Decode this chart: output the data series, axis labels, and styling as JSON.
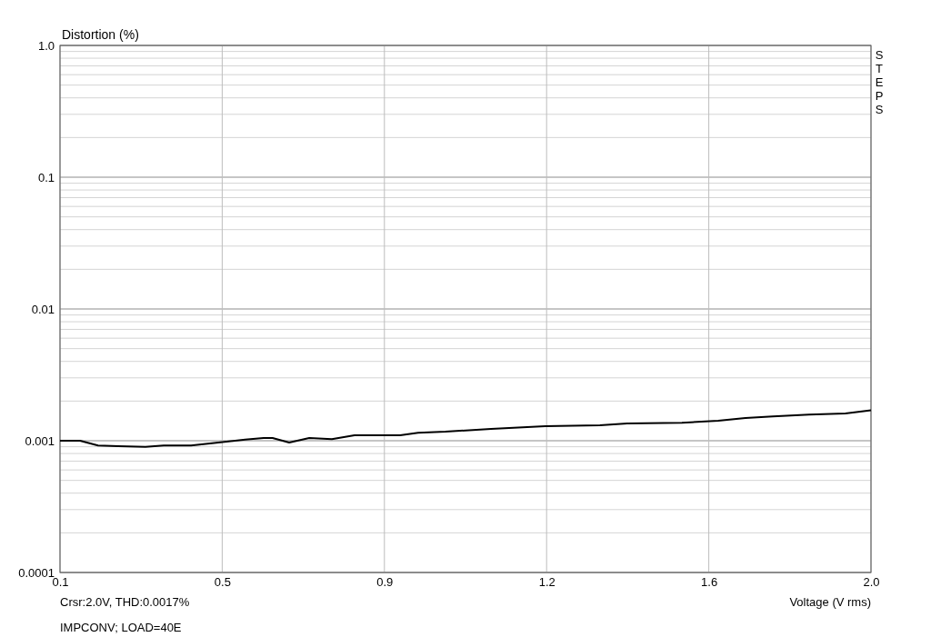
{
  "chart_data": {
    "type": "line",
    "ylabel": "Distortion (%)",
    "xlabel": "Voltage (V rms)",
    "annotations": [
      "STEPS",
      "Crsr:2.0V, THD:0.0017%",
      "IMPCONV; LOAD=40E"
    ],
    "log": "y",
    "grid": true,
    "marker": "none",
    "line_style": "solid",
    "xlim": [
      0.1,
      2.0
    ],
    "ylim": [
      0.0001,
      1
    ],
    "xticks": [
      0.1,
      {
        "value": 0.48,
        "label": "0.5"
      },
      {
        "value": 0.86,
        "label": "0.9"
      },
      {
        "value": 1.24,
        "label": "1.2"
      },
      {
        "value": 1.62,
        "label": "1.6"
      },
      {
        "value": 2.0,
        "label": "2.0"
      }
    ],
    "yticks": [
      0.0001,
      0.001,
      0.01,
      0.1,
      {
        "value": 1,
        "label": "1.0"
      }
    ],
    "series": [
      {
        "color": "#000000",
        "x": [
          0.1,
          0.147,
          0.189,
          0.236,
          0.3,
          0.343,
          0.407,
          0.471,
          0.534,
          0.577,
          0.598,
          0.637,
          0.684,
          0.737,
          0.79,
          0.854,
          0.897,
          0.939,
          1.003,
          1.11,
          1.237,
          1.365,
          1.429,
          1.557,
          1.642,
          1.706,
          1.77,
          1.855,
          1.94,
          2.0
        ],
        "values": [
          0.001,
          0.001,
          0.00092,
          0.00091,
          0.0009,
          0.00092,
          0.00092,
          0.00097,
          0.00102,
          0.00105,
          0.00105,
          0.00097,
          0.00105,
          0.00103,
          0.0011,
          0.0011,
          0.0011,
          0.00115,
          0.00117,
          0.00123,
          0.00129,
          0.00131,
          0.00135,
          0.00137,
          0.00142,
          0.00149,
          0.00153,
          0.00158,
          0.00161,
          0.0017
        ]
      }
    ]
  }
}
